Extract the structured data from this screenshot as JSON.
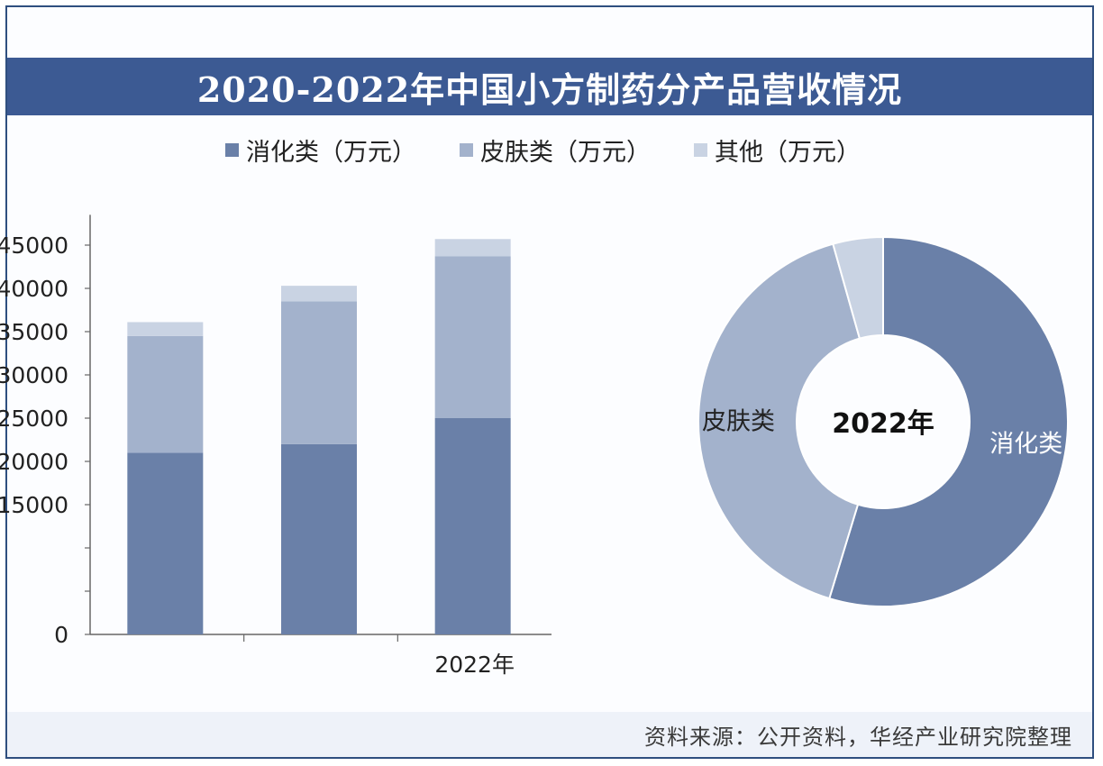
{
  "title": "2020-2022年中国小方制药分产品营收情况",
  "source": "资料来源：公开资料，华经产业研究院整理",
  "colors": {
    "digestive": "#6a80a8",
    "skin": "#a3b2cc",
    "other": "#c9d3e3",
    "title_bg": "#3c5a93"
  },
  "legend": [
    {
      "label": "消化类（万元）",
      "color": "#6a80a8"
    },
    {
      "label": "皮肤类（万元）",
      "color": "#a3b2cc"
    },
    {
      "label": "其他（万元）",
      "color": "#c9d3e3"
    }
  ],
  "chart_data": [
    {
      "type": "bar",
      "stacked": true,
      "categories": [
        "",
        "",
        "2022年"
      ],
      "series": [
        {
          "name": "消化类（万元）",
          "values": [
            21000,
            22000,
            25000
          ]
        },
        {
          "name": "皮肤类（万元）",
          "values": [
            13500,
            16500,
            18700
          ]
        },
        {
          "name": "其他（万元）",
          "values": [
            1600,
            1800,
            2000
          ]
        }
      ],
      "yticks": [
        "0",
        "",
        "",
        "15000",
        "20000",
        "25000",
        "30000",
        "35000",
        "40000",
        "45000"
      ],
      "ylim": [
        0,
        50000
      ],
      "grid": false
    },
    {
      "type": "pie",
      "donut": true,
      "center_label": "2022年",
      "labels": [
        "消化类",
        "皮肤类",
        "其他"
      ],
      "values": [
        25000,
        18700,
        2000
      ]
    }
  ]
}
